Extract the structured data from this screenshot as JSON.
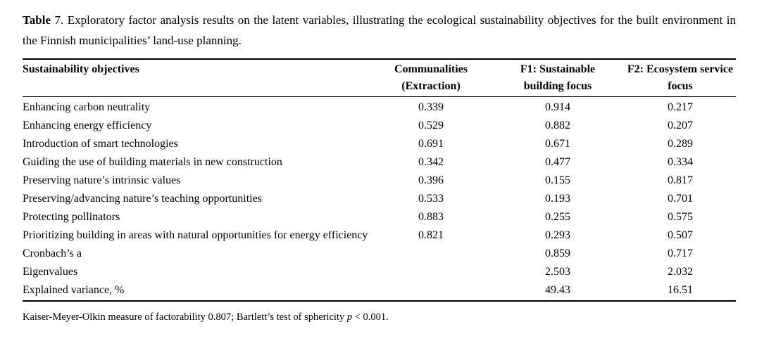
{
  "page": {
    "background_color": "#ffffff",
    "text_color": "#000000"
  },
  "caption": {
    "label": "Table",
    "rest": "7. Exploratory factor analysis results on the latent variables, illustrating the ecological sustainability objectives for the built environment in the Finnish municipalities’ land-use planning."
  },
  "table": {
    "header": {
      "objectives": "Sustainability objectives",
      "communalities_line1": "Communalities",
      "communalities_line2": "(Extraction)",
      "f1_line1": "F1: Sustainable",
      "f1_line2": "building focus",
      "f2_line1": "F2: Ecosystem service",
      "f2_line2": "focus"
    },
    "rows": [
      [
        "Enhancing carbon neutrality",
        "0.339",
        "0.914",
        "0.217"
      ],
      [
        "Enhancing energy efficiency",
        "0.529",
        "0.882",
        "0.207"
      ],
      [
        "Introduction of smart technologies",
        "0.691",
        "0.671",
        "0.289"
      ],
      [
        "Guiding the use of building materials in new construction",
        "0.342",
        "0.477",
        "0.334"
      ],
      [
        "Preserving nature’s intrinsic values",
        "0.396",
        "0.155",
        "0.817"
      ],
      [
        "Preserving/advancing nature’s teaching opportunities",
        "0.533",
        "0.193",
        "0.701"
      ],
      [
        "Protecting pollinators",
        "0.883",
        "0.255",
        "0.575"
      ],
      [
        "Prioritizing building in areas with natural opportunities for energy efficiency",
        "0.821",
        "0.293",
        "0.507"
      ],
      [
        "Cronbach’s a",
        "",
        "0.859",
        "0.717"
      ],
      [
        "Eigenvalues",
        "",
        "2.503",
        "2.032"
      ],
      [
        "Explained variance, %",
        "",
        "49.43",
        "16.51"
      ]
    ]
  },
  "footnote": {
    "before_p": "Kaiser-Meyer-Olkin measure of factorability 0.807; Bartlett’s test of sphericity ",
    "p_symbol": "p",
    "after_p": " < 0.001."
  }
}
